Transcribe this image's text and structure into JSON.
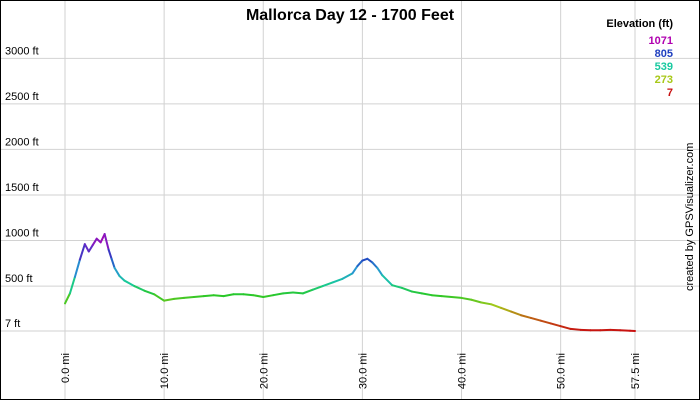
{
  "chart_data": {
    "type": "line",
    "title": "Mallorca Day 12 - 1700 Feet",
    "xlabel": "",
    "ylabel": "",
    "xlim": [
      0,
      57.5
    ],
    "ylim": [
      7,
      3300
    ],
    "grid": true,
    "y_ticks": [
      {
        "value": 3000,
        "label": "3000 ft"
      },
      {
        "value": 2500,
        "label": "2500 ft"
      },
      {
        "value": 2000,
        "label": "2000 ft"
      },
      {
        "value": 1500,
        "label": "1500 ft"
      },
      {
        "value": 1000,
        "label": "1000 ft"
      },
      {
        "value": 500,
        "label": "500 ft"
      },
      {
        "value": 7,
        "label": "7 ft"
      }
    ],
    "x_ticks": [
      {
        "value": 0,
        "label": "0.0 mi"
      },
      {
        "value": 10,
        "label": "10.0 mi"
      },
      {
        "value": 20,
        "label": "20.0 mi"
      },
      {
        "value": 30,
        "label": "30.0 mi"
      },
      {
        "value": 40,
        "label": "40.0 mi"
      },
      {
        "value": 50,
        "label": "50.0 mi"
      },
      {
        "value": 57.5,
        "label": "57.5 mi"
      }
    ],
    "legend": {
      "title": "Elevation (ft)",
      "placement": "top-right",
      "entries": [
        {
          "label": "1071",
          "color": "#b000b0"
        },
        {
          "label": "805",
          "color": "#1f3fbf"
        },
        {
          "label": "539",
          "color": "#18c9a0"
        },
        {
          "label": "273",
          "color": "#a8c818"
        },
        {
          "label": "7",
          "color": "#c81010"
        }
      ]
    },
    "series": [
      {
        "x": [
          0,
          0.5,
          1.0,
          1.5,
          2.0,
          2.4,
          2.8,
          3.2,
          3.6,
          4.0,
          4.4,
          4.7,
          5.0,
          5.5,
          6.0,
          7.0,
          8.0,
          9.0,
          10.0,
          11.0,
          12.0,
          13.0,
          14.0,
          15.0,
          16.0,
          17.0,
          18.0,
          19.0,
          20.0,
          21.0,
          22.0,
          23.0,
          24.0,
          25.0,
          26.0,
          27.0,
          28.0,
          29.0,
          29.5,
          30.0,
          30.5,
          31.0,
          31.5,
          32.0,
          33.0,
          34.0,
          35.0,
          36.0,
          37.0,
          38.0,
          39.0,
          40.0,
          41.0,
          42.0,
          43.0,
          44.0,
          45.0,
          46.0,
          47.0,
          48.0,
          49.0,
          50.0,
          51.0,
          52.0,
          53.0,
          54.0,
          55.0,
          56.0,
          57.0,
          57.5
        ],
        "y": [
          310,
          420,
          600,
          790,
          960,
          880,
          950,
          1020,
          980,
          1071,
          900,
          800,
          700,
          610,
          560,
          500,
          450,
          410,
          340,
          360,
          370,
          380,
          390,
          400,
          390,
          410,
          410,
          400,
          380,
          400,
          420,
          430,
          420,
          460,
          500,
          540,
          580,
          640,
          720,
          780,
          800,
          760,
          700,
          620,
          510,
          480,
          440,
          420,
          400,
          390,
          380,
          370,
          350,
          320,
          300,
          260,
          220,
          180,
          150,
          120,
          90,
          60,
          30,
          20,
          15,
          15,
          20,
          15,
          10,
          7
        ]
      }
    ]
  },
  "credit": "created by GPSVisualizer.com"
}
